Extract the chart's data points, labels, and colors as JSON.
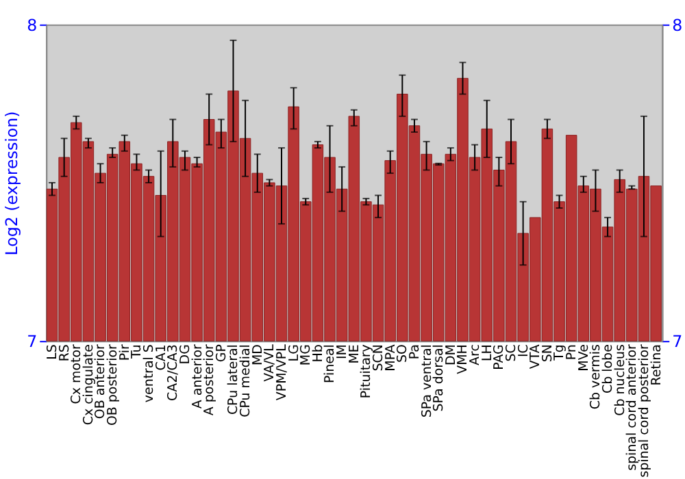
{
  "chart_data": {
    "type": "bar",
    "ylabel": "Log2 (expression)",
    "categories": [
      "LS",
      "RS",
      "Cx motor",
      "Cx cingulate",
      "OB anterior",
      "OB posterior",
      "Pir",
      "Tu",
      "ventral S",
      "CA1",
      "CA2/CA3",
      "DG",
      "A anterior",
      "A posterior",
      "GP",
      "CPu lateral",
      "CPu medial",
      "MD",
      "VA/VL",
      "VPM/VPL",
      "LG",
      "MG",
      "Hb",
      "Pineal",
      "IM",
      "ME",
      "Pituitary",
      "SCN",
      "MPA",
      "SO",
      "Pa",
      "SPa ventral",
      "SPa dorsal",
      "DM",
      "VMH",
      "Arc",
      "LH",
      "PAG",
      "SC",
      "IC",
      "VTA",
      "SN",
      "Tg",
      "Pn",
      "MVe",
      "Cb vermis",
      "Cb lobe",
      "Cb nucleus",
      "spinal cord anterior",
      "spinal cord posterior",
      "Retina"
    ],
    "series": [
      {
        "color": "#b83535",
        "values": [
          7.48,
          7.58,
          7.69,
          7.63,
          7.53,
          7.59,
          7.63,
          7.56,
          7.52,
          7.46,
          7.63,
          7.58,
          7.56,
          7.7,
          7.66,
          7.79,
          7.64,
          7.53,
          7.5,
          7.49,
          7.74,
          7.44,
          7.62,
          7.58,
          7.48,
          7.71,
          7.44,
          7.43,
          7.57,
          7.78,
          7.68,
          7.59,
          7.56,
          7.59,
          7.83,
          7.58,
          7.67,
          7.54,
          7.63,
          7.34,
          7.39,
          7.67,
          7.44,
          7.65,
          7.49,
          7.48,
          7.36,
          7.51,
          7.48,
          7.52,
          7.49
        ],
        "errors": [
          [
            7.46,
            7.5
          ],
          [
            7.52,
            7.64
          ],
          [
            7.67,
            7.71
          ],
          [
            7.61,
            7.64
          ],
          [
            7.5,
            7.56
          ],
          [
            7.58,
            7.61
          ],
          [
            7.6,
            7.65
          ],
          [
            7.54,
            7.59
          ],
          [
            7.5,
            7.54
          ],
          [
            7.33,
            7.6
          ],
          [
            7.55,
            7.7
          ],
          [
            7.54,
            7.6
          ],
          [
            7.55,
            7.58
          ],
          [
            7.62,
            7.78
          ],
          [
            7.61,
            7.7
          ],
          [
            7.63,
            7.95
          ],
          [
            7.52,
            7.76
          ],
          [
            7.47,
            7.59
          ],
          [
            7.49,
            7.51
          ],
          [
            7.37,
            7.61
          ],
          [
            7.67,
            7.8
          ],
          [
            7.43,
            7.45
          ],
          [
            7.61,
            7.63
          ],
          [
            7.47,
            7.68
          ],
          [
            7.41,
            7.55
          ],
          [
            7.68,
            7.73
          ],
          [
            7.43,
            7.45
          ],
          [
            7.39,
            7.46
          ],
          [
            7.53,
            7.6
          ],
          [
            7.71,
            7.84
          ],
          [
            7.66,
            7.7
          ],
          [
            7.54,
            7.63
          ],
          [
            7.556,
            7.561
          ],
          [
            7.57,
            7.61
          ],
          [
            7.78,
            7.88
          ],
          [
            7.54,
            7.62
          ],
          [
            7.58,
            7.76
          ],
          [
            7.49,
            7.58
          ],
          [
            7.56,
            7.7
          ],
          [
            7.24,
            7.44
          ],
          null,
          [
            7.64,
            7.7
          ],
          [
            7.42,
            7.46
          ],
          null,
          [
            7.47,
            7.52
          ],
          [
            7.41,
            7.54
          ],
          [
            7.33,
            7.39
          ],
          [
            7.47,
            7.54
          ],
          [
            7.48,
            7.49
          ],
          [
            7.33,
            7.71
          ],
          null
        ]
      }
    ],
    "ylim": [
      7,
      8
    ],
    "yticks": [
      7,
      8
    ],
    "y2lim": [
      7,
      8
    ],
    "y2ticks": [
      7,
      8
    ],
    "grid": false
  }
}
